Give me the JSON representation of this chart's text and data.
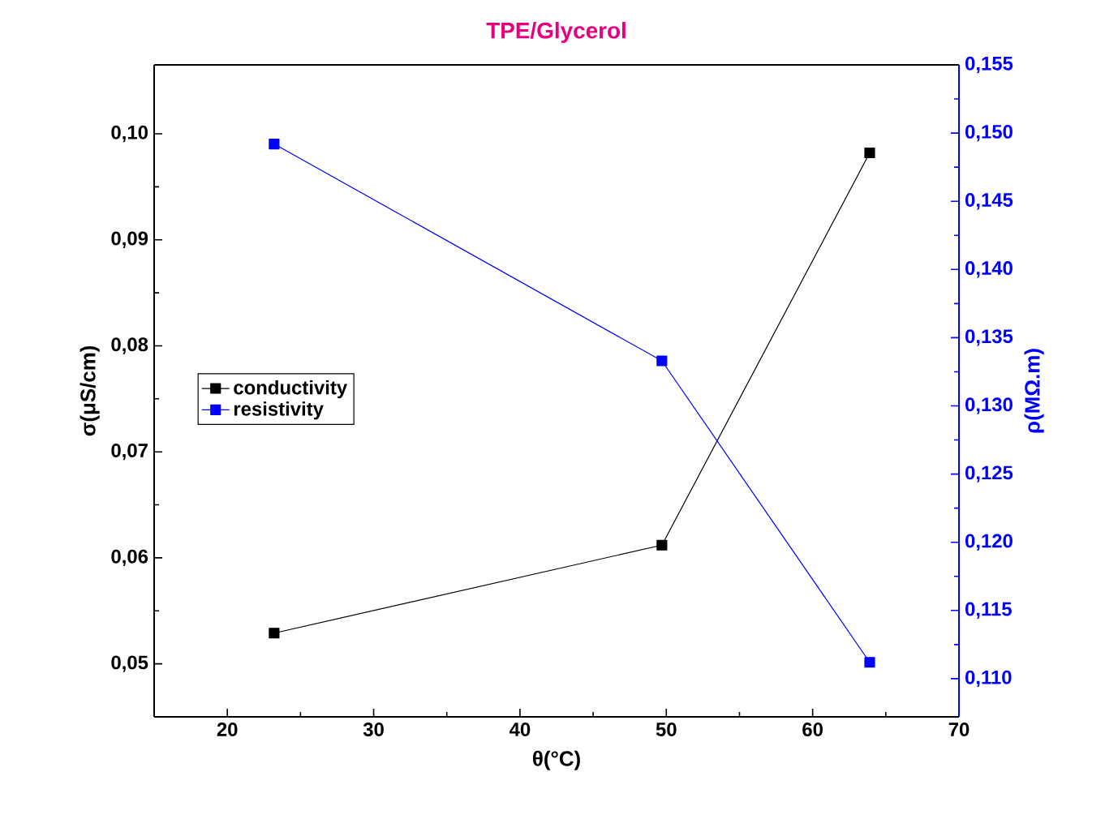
{
  "chart_data": {
    "type": "line",
    "title": "TPE/Glycerol",
    "xlabel": "θ(°C)",
    "ylabel": "σ(μS/cm)",
    "y2label": "ρ(MΩ.m)",
    "xlim": [
      15,
      70
    ],
    "xticks": [
      20,
      30,
      40,
      50,
      60,
      70
    ],
    "ylim": [
      0.045,
      0.1065
    ],
    "yticks": [
      {
        "value": 0.05,
        "label": "0,05"
      },
      {
        "value": 0.06,
        "label": "0,06"
      },
      {
        "value": 0.07,
        "label": "0,07"
      },
      {
        "value": 0.08,
        "label": "0,08"
      },
      {
        "value": 0.09,
        "label": "0,09"
      },
      {
        "value": 0.1,
        "label": "0,10"
      }
    ],
    "y2lim": [
      0.1072,
      0.155
    ],
    "y2ticks": [
      {
        "value": 0.11,
        "label": "0,110"
      },
      {
        "value": 0.115,
        "label": "0,115"
      },
      {
        "value": 0.12,
        "label": "0,120"
      },
      {
        "value": 0.125,
        "label": "0,125"
      },
      {
        "value": 0.13,
        "label": "0,130"
      },
      {
        "value": 0.135,
        "label": "0,135"
      },
      {
        "value": 0.14,
        "label": "0,140"
      },
      {
        "value": 0.145,
        "label": "0,145"
      },
      {
        "value": 0.15,
        "label": "0,150"
      },
      {
        "value": 0.155,
        "label": "0,155"
      }
    ],
    "x": [
      23.2,
      49.7,
      63.9
    ],
    "series": [
      {
        "name": "conductivity",
        "color": "#000000",
        "axis": "y",
        "values": [
          0.0529,
          0.0612,
          0.0982
        ]
      },
      {
        "name": "resistivity",
        "color": "#0000ff",
        "axis": "y2",
        "values": [
          0.1492,
          0.1333,
          0.1112
        ]
      }
    ],
    "marker": "square",
    "line_style": "solid",
    "legend": "left",
    "grid": false
  }
}
